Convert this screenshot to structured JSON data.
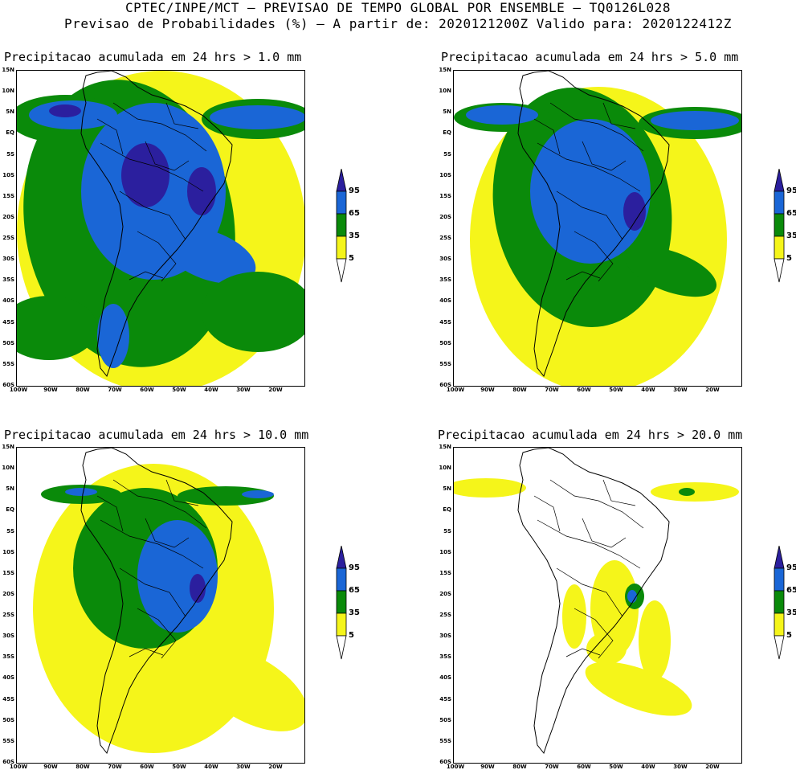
{
  "header": {
    "line1": "CPTEC/INPE/MCT – PREVISAO DE TEMPO GLOBAL POR ENSEMBLE – TQ0126L028",
    "line2": "Previsao de Probabilidades (%) –  A partir de: 2020121200Z  Valido para: 2020122412Z"
  },
  "axes": {
    "lat_labels": [
      "15N",
      "10N",
      "5N",
      "EQ",
      "5S",
      "10S",
      "15S",
      "20S",
      "25S",
      "30S",
      "35S",
      "40S",
      "45S",
      "50S",
      "55S",
      "60S"
    ],
    "lon_labels": [
      "100W",
      "90W",
      "80W",
      "70W",
      "60W",
      "50W",
      "40W",
      "30W",
      "20W"
    ]
  },
  "legend": {
    "labels": [
      "95",
      "65",
      "35",
      "5"
    ],
    "colors": [
      "#2b1f9e",
      "#1a66d6",
      "#0a8a0a",
      "#f5f51a",
      "#ffffff"
    ]
  },
  "panels": [
    {
      "title": "Precipitacao acumulada em 24 hrs > 1.0 mm",
      "threshold_mm": 1.0
    },
    {
      "title": "Precipitacao acumulada em 24 hrs > 5.0 mm",
      "threshold_mm": 5.0
    },
    {
      "title": "Precipitacao acumulada em 24 hrs > 10.0 mm",
      "threshold_mm": 10.0
    },
    {
      "title": "Precipitacao acumulada em 24 hrs > 20.0 mm",
      "threshold_mm": 20.0
    }
  ]
}
